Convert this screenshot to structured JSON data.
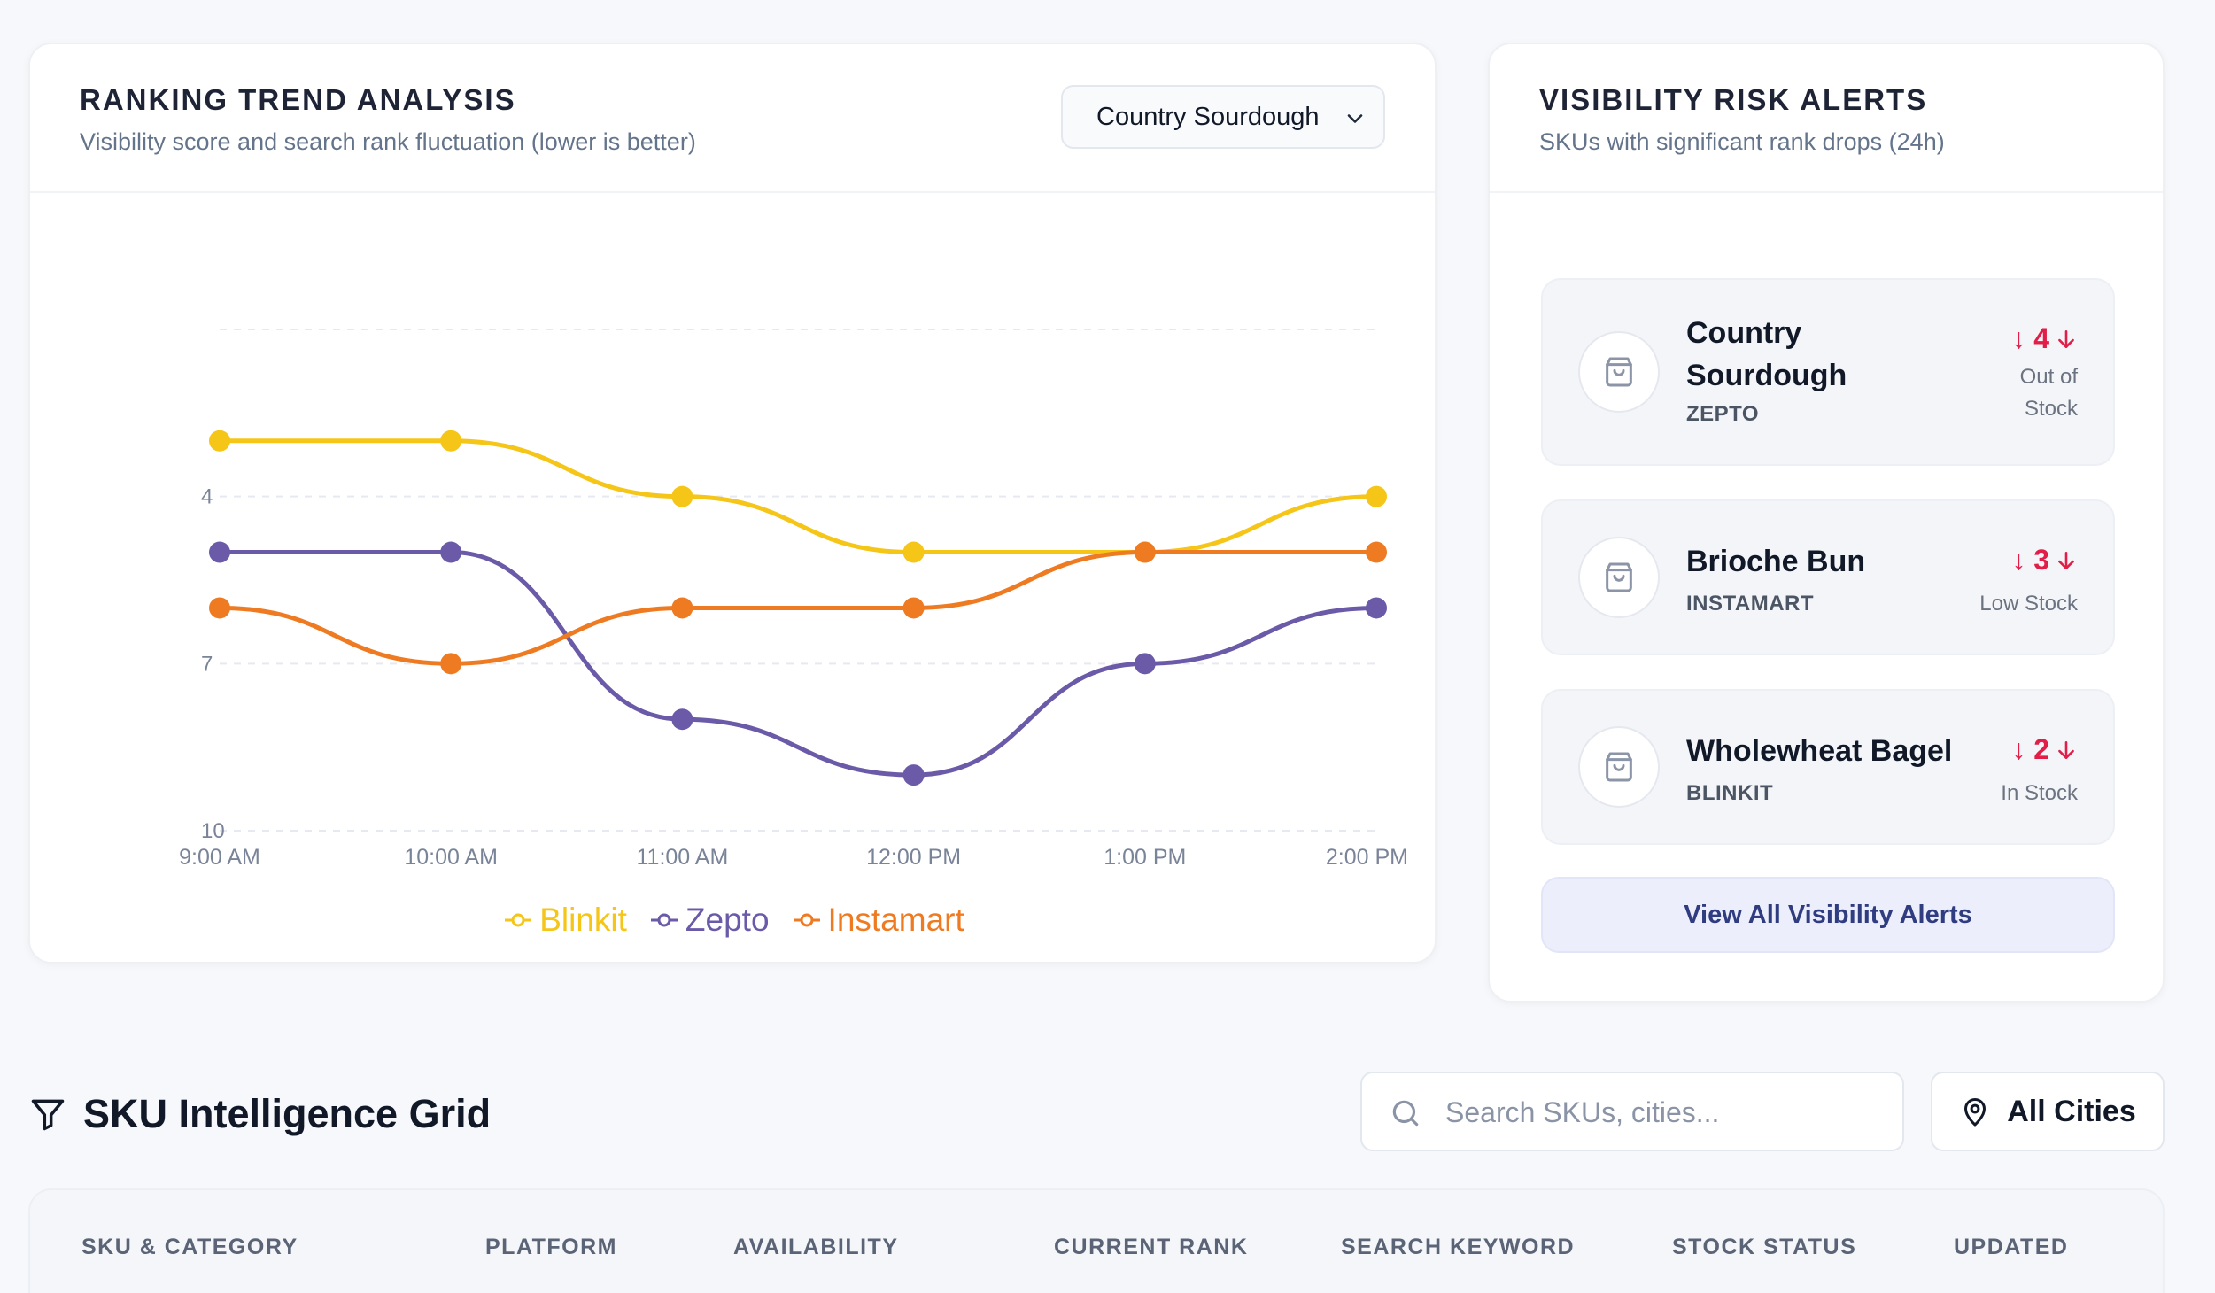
{
  "trend": {
    "title": "RANKING TREND ANALYSIS",
    "subtitle": "Visibility score and search rank fluctuation (lower is better)",
    "selected_sku": "Country Sourdough"
  },
  "chart_data": {
    "type": "line",
    "x": [
      "9:00 AM",
      "10:00 AM",
      "11:00 AM",
      "12:00 PM",
      "1:00 PM",
      "2:00 PM"
    ],
    "yticks": [
      4,
      7,
      10
    ],
    "ylim": [
      1,
      10
    ],
    "y_inverted": true,
    "grid": "horizontal-dashed",
    "legend_position": "bottom-center",
    "series": [
      {
        "name": "Blinkit",
        "color": "#f5c518",
        "values": [
          3,
          3,
          4,
          5,
          5,
          4
        ]
      },
      {
        "name": "Zepto",
        "color": "#6a5aa8",
        "values": [
          5,
          5,
          8,
          9,
          7,
          6
        ]
      },
      {
        "name": "Instamart",
        "color": "#ee7b22",
        "values": [
          6,
          7,
          6,
          6,
          5,
          5
        ]
      }
    ]
  },
  "risk": {
    "title": "VISIBILITY RISK ALERTS",
    "subtitle": "SKUs with significant rank drops (24h)",
    "alerts": [
      {
        "name_line1": "Country",
        "name_line2": "Sourdough",
        "platform": "ZEPTO",
        "drop": "↓ 4",
        "stock_line1": "Out of",
        "stock_line2": "Stock"
      },
      {
        "name": "Brioche Bun",
        "platform": "INSTAMART",
        "drop": "↓ 3",
        "stock": "Low Stock"
      },
      {
        "name": "Wholewheat Bagel",
        "platform": "BLINKIT",
        "drop": "↓ 2",
        "stock": "In Stock"
      }
    ],
    "view_all_label": "View All Visibility Alerts"
  },
  "grid": {
    "title": "SKU Intelligence Grid",
    "search_placeholder": "Search SKUs, cities...",
    "city_filter": "All Cities",
    "columns": [
      "SKU & CATEGORY",
      "PLATFORM",
      "AVAILABILITY",
      "CURRENT RANK",
      "SEARCH KEYWORD",
      "STOCK STATUS",
      "UPDATED"
    ]
  },
  "icons": {
    "select": "chevron-down-icon",
    "alert": "shopping-bag-icon",
    "drop": "arrow-down-icon",
    "filter": "filter-icon",
    "search": "search-icon",
    "location": "map-pin-icon"
  }
}
